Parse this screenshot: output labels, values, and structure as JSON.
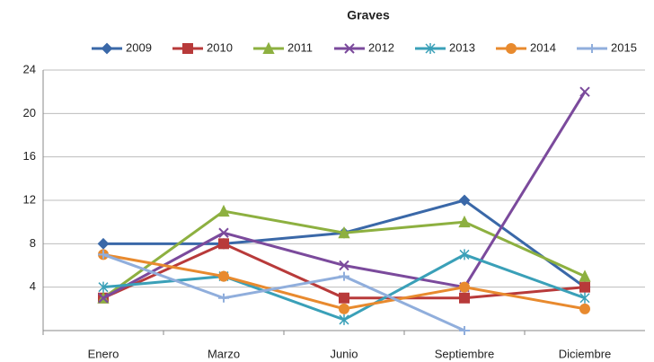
{
  "chart_data": {
    "type": "line",
    "title": "Graves",
    "categories": [
      "Enero",
      "Marzo",
      "Junio",
      "Septiembre",
      "Diciembre"
    ],
    "ylim": [
      0,
      24
    ],
    "yticks": [
      4,
      8,
      12,
      16,
      20,
      24
    ],
    "grid": true,
    "legend": "top",
    "series": [
      {
        "name": "2009",
        "color": "#3a68a8",
        "marker": "diamond",
        "values": [
          8,
          8,
          9,
          12,
          4
        ]
      },
      {
        "name": "2010",
        "color": "#b83a3a",
        "marker": "square",
        "values": [
          3,
          8,
          3,
          3,
          4
        ]
      },
      {
        "name": "2011",
        "color": "#8db040",
        "marker": "triangle",
        "values": [
          3,
          11,
          9,
          10,
          5
        ]
      },
      {
        "name": "2012",
        "color": "#7b4a9c",
        "marker": "x",
        "values": [
          3,
          9,
          6,
          4,
          22
        ]
      },
      {
        "name": "2013",
        "color": "#3aa0b8",
        "marker": "star",
        "values": [
          4,
          5,
          1,
          7,
          3
        ]
      },
      {
        "name": "2014",
        "color": "#e88a2e",
        "marker": "circle",
        "values": [
          7,
          5,
          2,
          4,
          2
        ]
      },
      {
        "name": "2015",
        "color": "#90aedc",
        "marker": "plus",
        "values": [
          7,
          3,
          5,
          0,
          null
        ]
      }
    ]
  }
}
